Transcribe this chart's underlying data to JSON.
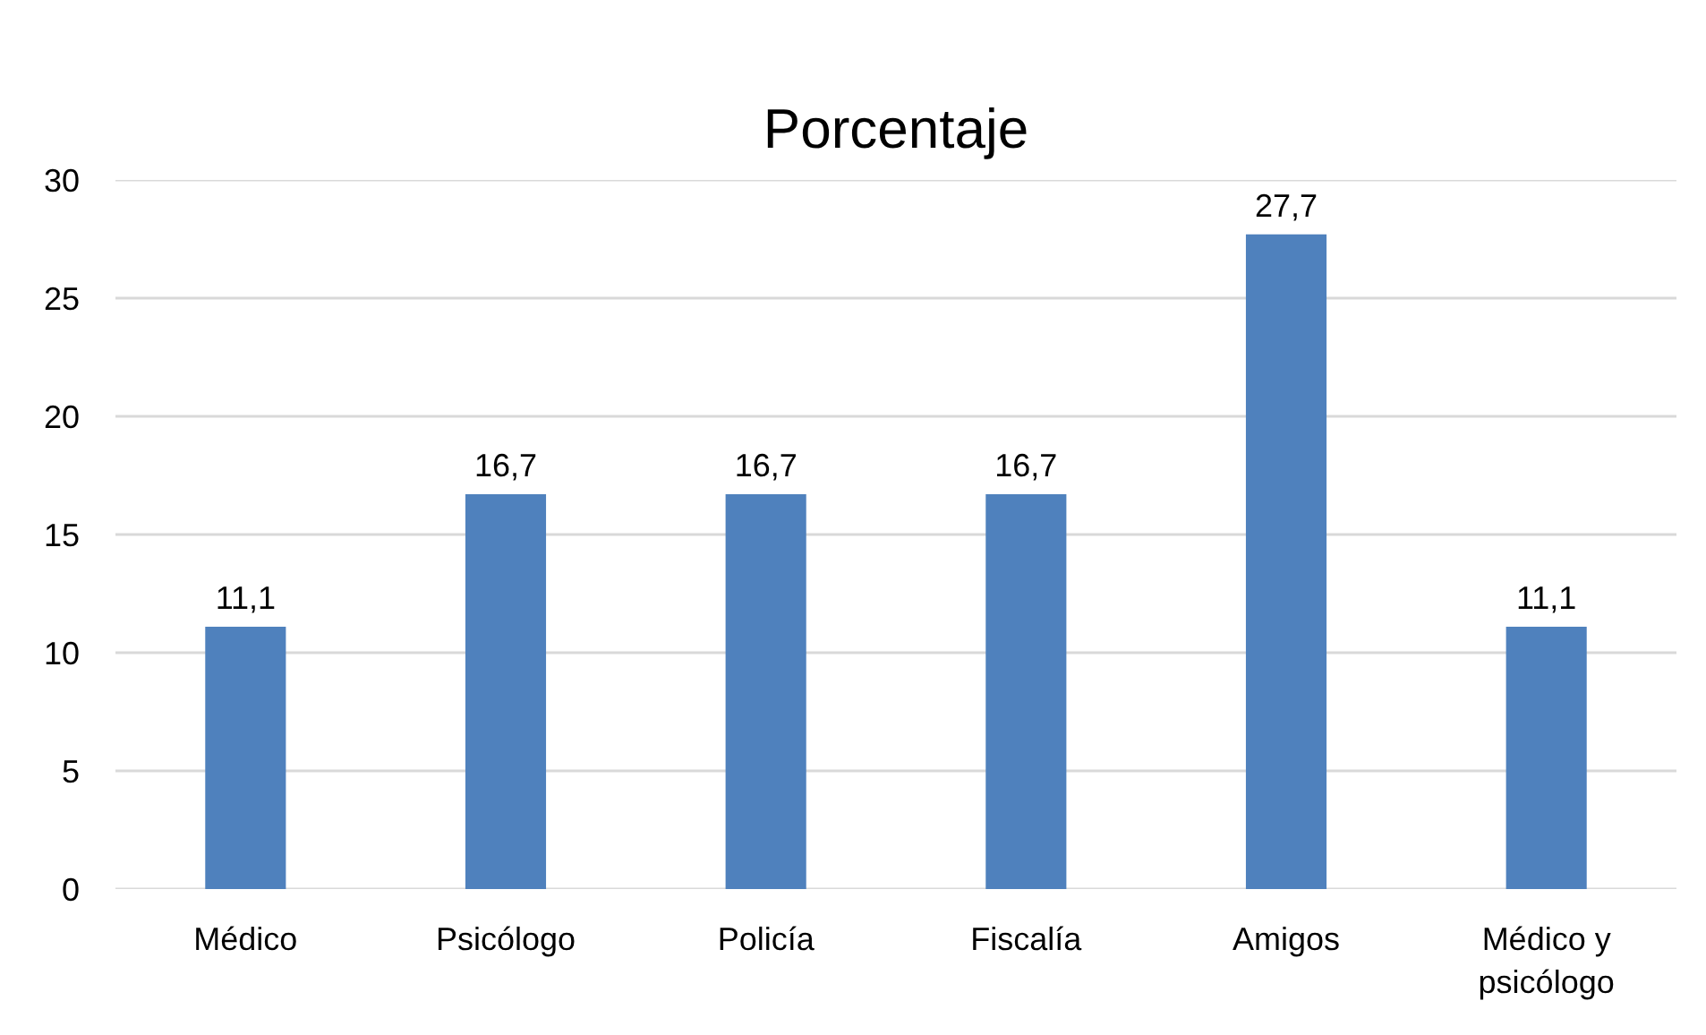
{
  "chart_data": {
    "type": "bar",
    "title": "Porcentaje",
    "categories": [
      "Médico",
      "Psicólogo",
      "Policía",
      "Fiscalía",
      "Amigos",
      "Médico y psicólogo"
    ],
    "values": [
      11.1,
      16.7,
      16.7,
      16.7,
      27.7,
      11.1
    ],
    "value_labels": [
      "11,1",
      "16,7",
      "16,7",
      "16,7",
      "27,7",
      "11,1"
    ],
    "color": "#4f81bd",
    "ylim": [
      0,
      30
    ],
    "yticks": [
      0,
      5,
      10,
      15,
      20,
      25,
      30
    ],
    "grid": "y"
  }
}
